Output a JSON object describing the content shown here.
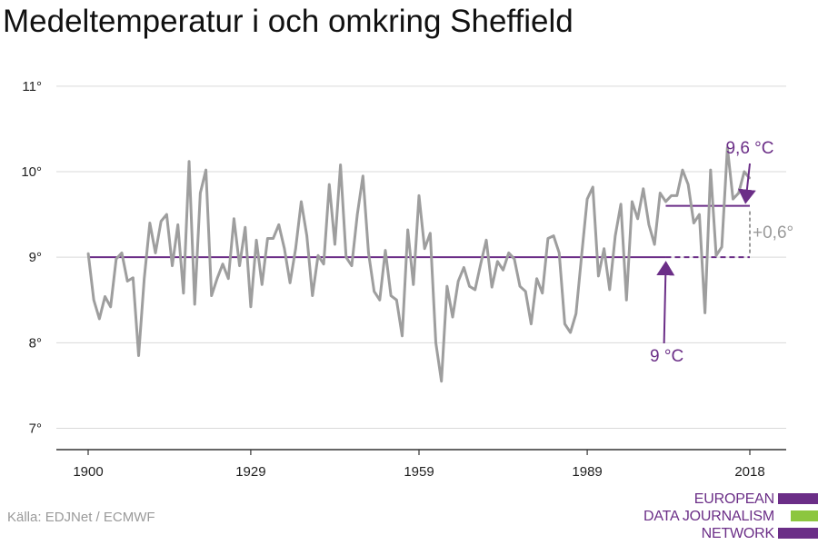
{
  "title": "Medeltemperatur i och omkring Sheffield",
  "source": "Källa: EDJNet / ECMWF",
  "logo": {
    "lines": [
      "EUROPEAN",
      "DATA JOURNALISM",
      "NETWORK"
    ],
    "bar_colors": [
      "#6b2e87",
      "#8cc63f",
      "#6b2e87"
    ],
    "bar_widths": [
      44,
      30,
      44
    ]
  },
  "colors": {
    "series": "#9e9e9e",
    "accent": "#6b2e87",
    "axis": "#333333",
    "grid": "#d9d9d9",
    "delta": "#9a9a9a"
  },
  "chart_data": {
    "type": "line",
    "xlim": [
      1900,
      2018
    ],
    "ylim": [
      6.4,
      11.2
    ],
    "x_ticks": [
      1900,
      1929,
      1959,
      1989,
      2018
    ],
    "y_ticks": [
      {
        "value": 7,
        "label": "7°"
      },
      {
        "value": 8,
        "label": "8°"
      },
      {
        "value": 9,
        "label": "9°"
      },
      {
        "value": 10,
        "label": "10°"
      },
      {
        "value": 11,
        "label": "11°"
      }
    ],
    "grid": "horizontal",
    "series": [
      {
        "x_start": 1900,
        "values": [
          9.05,
          8.5,
          8.28,
          8.54,
          8.42,
          8.98,
          9.05,
          8.72,
          8.76,
          7.85,
          8.75,
          9.4,
          9.05,
          9.42,
          9.5,
          8.9,
          9.38,
          8.58,
          10.12,
          8.45,
          9.75,
          10.02,
          8.55,
          8.75,
          8.92,
          8.75,
          9.45,
          8.9,
          9.35,
          8.42,
          9.2,
          8.68,
          9.22,
          9.22,
          9.38,
          9.1,
          8.7,
          9.1,
          9.65,
          9.25,
          8.55,
          9.02,
          8.92,
          9.85,
          9.15,
          10.08,
          9.0,
          8.9,
          9.5,
          9.95,
          9.05,
          8.6,
          8.5,
          9.08,
          8.55,
          8.5,
          8.08,
          9.32,
          8.68,
          9.72,
          9.1,
          9.28,
          8.0,
          7.55,
          8.66,
          8.3,
          8.72,
          8.88,
          8.66,
          8.62,
          8.92,
          9.2,
          8.65,
          8.95,
          8.85,
          9.05,
          8.98,
          8.66,
          8.6,
          8.22,
          8.75,
          8.58,
          9.22,
          9.25,
          9.05,
          8.22,
          8.12,
          8.34,
          9.02,
          9.68,
          9.82,
          8.78,
          9.1,
          8.62,
          9.25,
          9.62,
          8.5,
          9.65,
          9.45,
          9.8,
          9.38,
          9.15,
          9.75,
          9.65,
          9.72,
          9.72,
          10.02,
          9.85,
          9.4,
          9.5,
          8.35,
          10.02,
          9.02,
          9.12,
          10.28,
          9.68,
          9.75,
          10.0,
          9.92
        ]
      }
    ],
    "annotations": {
      "baseline": {
        "value": 9,
        "solid_to": 2003,
        "dashed_to": 2018,
        "label": "9 °C",
        "label_year": 2004
      },
      "recent": {
        "value": 9.6,
        "from": 2003,
        "to": 2018,
        "label": "9,6 °C",
        "label_year": 2018
      },
      "delta": {
        "label": "+0,6°"
      }
    }
  }
}
